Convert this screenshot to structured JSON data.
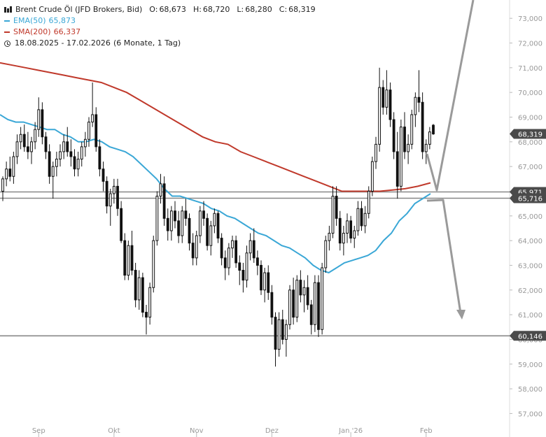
{
  "legend": {
    "title": "Brent Crude Öl (JFD Brokers, Bid)",
    "open_label": "O:",
    "open": "68,673",
    "high_label": "H:",
    "high": "68,720",
    "low_label": "L:",
    "low": "68,280",
    "close_label": "C:",
    "close": "68,319",
    "ema_label": "EMA(50)",
    "ema_value": "65,873",
    "sma_label": "SMA(200)",
    "sma_value": "66,337",
    "range_label": "18.08.2025 - 17.02.2026",
    "period_label": "(6 Monate, 1 Tag)"
  },
  "colors": {
    "ema": "#3aa7d6",
    "sma": "#c0392b",
    "candle": "#111111",
    "level": "#888888",
    "arrow": "#9a9a9a",
    "badge_bg": "#4a4a4a",
    "badge_text": "#ffffff"
  },
  "chart_data": {
    "type": "candlestick",
    "title": "Brent Crude Öl (JFD Brokers, Bid)",
    "ylim": [
      56.7,
      73.6
    ],
    "y_ticks": [
      "57,000",
      "58,000",
      "59,000",
      "60,000",
      "61,000",
      "62,000",
      "63,000",
      "64,000",
      "65,000",
      "66,000",
      "67,000",
      "68,000",
      "69,000",
      "70,000",
      "71,000",
      "72,000",
      "73,000"
    ],
    "x_labels": [
      "Sep",
      "Okt",
      "Nov",
      "Dez",
      "Jan '26",
      "Feb"
    ],
    "levels": [
      {
        "value": 65.971,
        "label": "65,971"
      },
      {
        "value": 65.716,
        "label": "65,716"
      },
      {
        "value": 60.146,
        "label": "60,146"
      }
    ],
    "last_price": {
      "value": 68.319,
      "label": "68,319"
    },
    "candles": [
      [
        66.0,
        66.6,
        65.6,
        66.5
      ],
      [
        66.5,
        67.2,
        66.2,
        66.9
      ],
      [
        66.9,
        67.4,
        66.4,
        66.6
      ],
      [
        66.6,
        67.6,
        66.3,
        67.4
      ],
      [
        67.4,
        68.3,
        67.1,
        68.0
      ],
      [
        68.0,
        68.6,
        67.7,
        68.3
      ],
      [
        68.3,
        68.7,
        67.6,
        67.8
      ],
      [
        67.8,
        68.4,
        67.3,
        67.6
      ],
      [
        67.6,
        68.2,
        67.1,
        68.0
      ],
      [
        68.0,
        68.8,
        67.7,
        68.5
      ],
      [
        68.5,
        69.8,
        68.2,
        69.3
      ],
      [
        69.3,
        69.6,
        67.9,
        68.2
      ],
      [
        68.2,
        68.4,
        67.3,
        67.6
      ],
      [
        67.6,
        67.9,
        66.3,
        66.6
      ],
      [
        66.6,
        67.2,
        65.7,
        67.0
      ],
      [
        67.0,
        67.6,
        66.6,
        67.3
      ],
      [
        67.3,
        67.9,
        67.0,
        67.6
      ],
      [
        67.6,
        68.3,
        67.3,
        68.0
      ],
      [
        68.0,
        68.6,
        67.4,
        67.6
      ],
      [
        67.6,
        68.1,
        67.0,
        67.4
      ],
      [
        67.4,
        67.7,
        66.6,
        66.9
      ],
      [
        66.9,
        67.6,
        66.6,
        67.3
      ],
      [
        67.3,
        68.0,
        67.0,
        67.8
      ],
      [
        67.8,
        68.4,
        67.4,
        68.1
      ],
      [
        68.1,
        69.0,
        67.8,
        68.8
      ],
      [
        68.8,
        70.4,
        68.6,
        69.1
      ],
      [
        69.1,
        69.4,
        67.6,
        67.8
      ],
      [
        67.8,
        68.1,
        66.6,
        66.9
      ],
      [
        66.9,
        67.2,
        66.0,
        66.4
      ],
      [
        66.4,
        66.6,
        65.1,
        65.4
      ],
      [
        65.4,
        66.1,
        64.6,
        65.9
      ],
      [
        65.9,
        66.5,
        65.5,
        66.2
      ],
      [
        66.2,
        66.5,
        65.0,
        65.3
      ],
      [
        65.3,
        65.6,
        63.9,
        64.0
      ],
      [
        64.0,
        64.3,
        62.4,
        62.6
      ],
      [
        62.6,
        64.0,
        62.4,
        63.8
      ],
      [
        63.8,
        64.4,
        62.6,
        62.8
      ],
      [
        62.8,
        63.1,
        61.3,
        61.6
      ],
      [
        61.6,
        62.8,
        61.2,
        62.5
      ],
      [
        62.5,
        62.7,
        60.9,
        61.1
      ],
      [
        61.1,
        61.4,
        60.2,
        60.9
      ],
      [
        60.9,
        62.3,
        60.6,
        62.1
      ],
      [
        62.1,
        64.2,
        61.9,
        64.0
      ],
      [
        64.0,
        66.0,
        63.8,
        65.8
      ],
      [
        65.8,
        66.7,
        65.5,
        66.3
      ],
      [
        66.3,
        66.6,
        64.6,
        64.9
      ],
      [
        64.9,
        65.3,
        64.0,
        64.4
      ],
      [
        64.4,
        65.4,
        64.0,
        65.2
      ],
      [
        65.2,
        65.6,
        64.5,
        64.8
      ],
      [
        64.8,
        65.2,
        63.9,
        64.2
      ],
      [
        64.2,
        65.4,
        63.9,
        65.2
      ],
      [
        65.2,
        65.7,
        64.6,
        64.9
      ],
      [
        64.9,
        65.1,
        63.6,
        63.9
      ],
      [
        63.9,
        64.3,
        63.0,
        63.3
      ],
      [
        63.3,
        64.4,
        63.0,
        64.2
      ],
      [
        64.2,
        65.4,
        63.9,
        65.2
      ],
      [
        65.2,
        65.6,
        64.6,
        64.9
      ],
      [
        64.9,
        65.1,
        63.6,
        63.8
      ],
      [
        63.8,
        64.8,
        63.4,
        64.6
      ],
      [
        64.6,
        65.3,
        64.3,
        65.1
      ],
      [
        65.1,
        65.2,
        63.9,
        64.1
      ],
      [
        64.1,
        64.3,
        63.0,
        63.3
      ],
      [
        63.3,
        63.6,
        62.4,
        62.9
      ],
      [
        62.9,
        63.9,
        62.6,
        63.7
      ],
      [
        63.7,
        64.2,
        63.3,
        64.0
      ],
      [
        64.0,
        64.2,
        62.9,
        63.1
      ],
      [
        63.1,
        63.4,
        62.2,
        62.8
      ],
      [
        62.8,
        63.1,
        61.9,
        62.4
      ],
      [
        62.4,
        63.8,
        62.1,
        63.5
      ],
      [
        63.5,
        64.3,
        63.2,
        64.0
      ],
      [
        64.0,
        64.5,
        63.1,
        63.3
      ],
      [
        63.3,
        63.6,
        62.6,
        63.0
      ],
      [
        63.0,
        63.2,
        61.8,
        62.0
      ],
      [
        62.0,
        62.9,
        61.5,
        62.7
      ],
      [
        62.7,
        63.0,
        61.6,
        61.9
      ],
      [
        61.9,
        62.2,
        60.6,
        60.9
      ],
      [
        60.9,
        61.1,
        58.9,
        59.6
      ],
      [
        59.6,
        61.1,
        59.3,
        60.8
      ],
      [
        60.8,
        61.2,
        59.8,
        60.0
      ],
      [
        60.0,
        60.8,
        59.3,
        60.6
      ],
      [
        60.6,
        62.2,
        60.4,
        62.0
      ],
      [
        62.0,
        62.5,
        60.6,
        60.9
      ],
      [
        60.9,
        62.6,
        60.7,
        62.4
      ],
      [
        62.4,
        62.8,
        61.5,
        61.8
      ],
      [
        61.8,
        62.4,
        61.1,
        62.1
      ],
      [
        62.1,
        62.6,
        61.2,
        61.4
      ],
      [
        61.4,
        61.6,
        60.2,
        60.6
      ],
      [
        60.6,
        62.6,
        60.3,
        62.3
      ],
      [
        62.3,
        62.6,
        60.1,
        60.4
      ],
      [
        60.4,
        63.1,
        60.2,
        62.9
      ],
      [
        62.9,
        64.2,
        62.7,
        64.0
      ],
      [
        64.0,
        64.6,
        63.6,
        64.3
      ],
      [
        64.3,
        66.2,
        64.1,
        65.8
      ],
      [
        65.8,
        66.2,
        64.6,
        64.9
      ],
      [
        64.9,
        65.2,
        63.6,
        63.9
      ],
      [
        63.9,
        64.6,
        63.4,
        64.3
      ],
      [
        64.3,
        65.1,
        63.9,
        64.8
      ],
      [
        64.8,
        65.0,
        63.9,
        64.1
      ],
      [
        64.1,
        64.6,
        63.7,
        64.4
      ],
      [
        64.4,
        65.6,
        64.2,
        65.3
      ],
      [
        65.3,
        65.6,
        64.4,
        64.6
      ],
      [
        64.6,
        65.4,
        64.3,
        65.1
      ],
      [
        65.1,
        66.2,
        64.9,
        66.0
      ],
      [
        66.0,
        67.4,
        65.8,
        67.2
      ],
      [
        67.2,
        68.2,
        66.9,
        67.9
      ],
      [
        67.9,
        71.0,
        67.6,
        70.2
      ],
      [
        70.2,
        70.5,
        69.1,
        69.4
      ],
      [
        69.4,
        70.9,
        69.1,
        70.1
      ],
      [
        70.1,
        70.4,
        68.6,
        68.9
      ],
      [
        68.9,
        69.2,
        67.3,
        67.6
      ],
      [
        67.6,
        68.4,
        65.7,
        66.2
      ],
      [
        66.2,
        68.9,
        66.0,
        68.6
      ],
      [
        68.6,
        69.2,
        67.3,
        67.6
      ],
      [
        67.6,
        68.3,
        67.1,
        67.9
      ],
      [
        67.9,
        69.3,
        67.7,
        69.1
      ],
      [
        69.1,
        70.0,
        68.6,
        69.8
      ],
      [
        69.8,
        70.9,
        69.2,
        69.6
      ],
      [
        69.6,
        70.0,
        67.3,
        67.6
      ],
      [
        67.6,
        68.1,
        67.1,
        67.9
      ],
      [
        67.9,
        68.6,
        67.7,
        68.4
      ],
      [
        68.673,
        68.72,
        68.28,
        68.319
      ]
    ],
    "ema50": [
      69.1,
      68.9,
      68.8,
      68.8,
      68.7,
      68.6,
      68.5,
      68.5,
      68.3,
      68.2,
      68.0,
      68.0,
      68.1,
      68.0,
      67.8,
      67.7,
      67.6,
      67.4,
      67.1,
      66.8,
      66.5,
      66.1,
      65.8,
      65.8,
      65.7,
      65.6,
      65.5,
      65.3,
      65.2,
      65.0,
      64.9,
      64.7,
      64.5,
      64.3,
      64.2,
      64.0,
      63.8,
      63.7,
      63.5,
      63.3,
      63.0,
      62.8,
      62.7,
      62.9,
      63.1,
      63.2,
      63.3,
      63.4,
      63.6,
      64.0,
      64.3,
      64.8,
      65.1,
      65.5,
      65.7,
      65.9
    ],
    "sma200": [
      71.2,
      71.1,
      71.0,
      70.9,
      70.8,
      70.7,
      70.6,
      70.5,
      70.4,
      70.2,
      70.0,
      69.7,
      69.4,
      69.1,
      68.8,
      68.5,
      68.2,
      68.0,
      67.9,
      67.6,
      67.4,
      67.2,
      67.0,
      66.8,
      66.6,
      66.4,
      66.2,
      66.0,
      66.0,
      66.0,
      66.0,
      66.05,
      66.1,
      66.2,
      66.34
    ]
  }
}
